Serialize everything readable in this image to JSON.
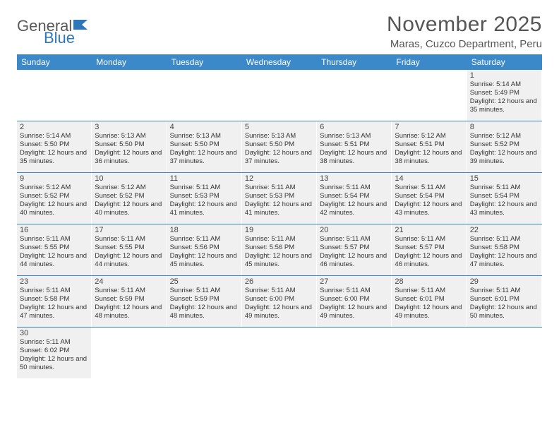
{
  "logo": {
    "text1": "General",
    "text2": "Blue"
  },
  "title": "November 2025",
  "subtitle": "Maras, Cuzco Department, Peru",
  "colors": {
    "header_bg": "#3b89c9",
    "header_text": "#ffffff",
    "cell_bg": "#f0f0f0",
    "divider": "#3b89c9",
    "logo_gray": "#5a5a5a",
    "logo_blue": "#2f77bb"
  },
  "weekdays": [
    "Sunday",
    "Monday",
    "Tuesday",
    "Wednesday",
    "Thursday",
    "Friday",
    "Saturday"
  ],
  "weeks": [
    [
      {
        "n": "",
        "sr": "",
        "ss": "",
        "dl": ""
      },
      {
        "n": "",
        "sr": "",
        "ss": "",
        "dl": ""
      },
      {
        "n": "",
        "sr": "",
        "ss": "",
        "dl": ""
      },
      {
        "n": "",
        "sr": "",
        "ss": "",
        "dl": ""
      },
      {
        "n": "",
        "sr": "",
        "ss": "",
        "dl": ""
      },
      {
        "n": "",
        "sr": "",
        "ss": "",
        "dl": ""
      },
      {
        "n": "1",
        "sr": "Sunrise: 5:14 AM",
        "ss": "Sunset: 5:49 PM",
        "dl": "Daylight: 12 hours and 35 minutes."
      }
    ],
    [
      {
        "n": "2",
        "sr": "Sunrise: 5:14 AM",
        "ss": "Sunset: 5:50 PM",
        "dl": "Daylight: 12 hours and 35 minutes."
      },
      {
        "n": "3",
        "sr": "Sunrise: 5:13 AM",
        "ss": "Sunset: 5:50 PM",
        "dl": "Daylight: 12 hours and 36 minutes."
      },
      {
        "n": "4",
        "sr": "Sunrise: 5:13 AM",
        "ss": "Sunset: 5:50 PM",
        "dl": "Daylight: 12 hours and 37 minutes."
      },
      {
        "n": "5",
        "sr": "Sunrise: 5:13 AM",
        "ss": "Sunset: 5:50 PM",
        "dl": "Daylight: 12 hours and 37 minutes."
      },
      {
        "n": "6",
        "sr": "Sunrise: 5:13 AM",
        "ss": "Sunset: 5:51 PM",
        "dl": "Daylight: 12 hours and 38 minutes."
      },
      {
        "n": "7",
        "sr": "Sunrise: 5:12 AM",
        "ss": "Sunset: 5:51 PM",
        "dl": "Daylight: 12 hours and 38 minutes."
      },
      {
        "n": "8",
        "sr": "Sunrise: 5:12 AM",
        "ss": "Sunset: 5:52 PM",
        "dl": "Daylight: 12 hours and 39 minutes."
      }
    ],
    [
      {
        "n": "9",
        "sr": "Sunrise: 5:12 AM",
        "ss": "Sunset: 5:52 PM",
        "dl": "Daylight: 12 hours and 40 minutes."
      },
      {
        "n": "10",
        "sr": "Sunrise: 5:12 AM",
        "ss": "Sunset: 5:52 PM",
        "dl": "Daylight: 12 hours and 40 minutes."
      },
      {
        "n": "11",
        "sr": "Sunrise: 5:11 AM",
        "ss": "Sunset: 5:53 PM",
        "dl": "Daylight: 12 hours and 41 minutes."
      },
      {
        "n": "12",
        "sr": "Sunrise: 5:11 AM",
        "ss": "Sunset: 5:53 PM",
        "dl": "Daylight: 12 hours and 41 minutes."
      },
      {
        "n": "13",
        "sr": "Sunrise: 5:11 AM",
        "ss": "Sunset: 5:54 PM",
        "dl": "Daylight: 12 hours and 42 minutes."
      },
      {
        "n": "14",
        "sr": "Sunrise: 5:11 AM",
        "ss": "Sunset: 5:54 PM",
        "dl": "Daylight: 12 hours and 43 minutes."
      },
      {
        "n": "15",
        "sr": "Sunrise: 5:11 AM",
        "ss": "Sunset: 5:54 PM",
        "dl": "Daylight: 12 hours and 43 minutes."
      }
    ],
    [
      {
        "n": "16",
        "sr": "Sunrise: 5:11 AM",
        "ss": "Sunset: 5:55 PM",
        "dl": "Daylight: 12 hours and 44 minutes."
      },
      {
        "n": "17",
        "sr": "Sunrise: 5:11 AM",
        "ss": "Sunset: 5:55 PM",
        "dl": "Daylight: 12 hours and 44 minutes."
      },
      {
        "n": "18",
        "sr": "Sunrise: 5:11 AM",
        "ss": "Sunset: 5:56 PM",
        "dl": "Daylight: 12 hours and 45 minutes."
      },
      {
        "n": "19",
        "sr": "Sunrise: 5:11 AM",
        "ss": "Sunset: 5:56 PM",
        "dl": "Daylight: 12 hours and 45 minutes."
      },
      {
        "n": "20",
        "sr": "Sunrise: 5:11 AM",
        "ss": "Sunset: 5:57 PM",
        "dl": "Daylight: 12 hours and 46 minutes."
      },
      {
        "n": "21",
        "sr": "Sunrise: 5:11 AM",
        "ss": "Sunset: 5:57 PM",
        "dl": "Daylight: 12 hours and 46 minutes."
      },
      {
        "n": "22",
        "sr": "Sunrise: 5:11 AM",
        "ss": "Sunset: 5:58 PM",
        "dl": "Daylight: 12 hours and 47 minutes."
      }
    ],
    [
      {
        "n": "23",
        "sr": "Sunrise: 5:11 AM",
        "ss": "Sunset: 5:58 PM",
        "dl": "Daylight: 12 hours and 47 minutes."
      },
      {
        "n": "24",
        "sr": "Sunrise: 5:11 AM",
        "ss": "Sunset: 5:59 PM",
        "dl": "Daylight: 12 hours and 48 minutes."
      },
      {
        "n": "25",
        "sr": "Sunrise: 5:11 AM",
        "ss": "Sunset: 5:59 PM",
        "dl": "Daylight: 12 hours and 48 minutes."
      },
      {
        "n": "26",
        "sr": "Sunrise: 5:11 AM",
        "ss": "Sunset: 6:00 PM",
        "dl": "Daylight: 12 hours and 49 minutes."
      },
      {
        "n": "27",
        "sr": "Sunrise: 5:11 AM",
        "ss": "Sunset: 6:00 PM",
        "dl": "Daylight: 12 hours and 49 minutes."
      },
      {
        "n": "28",
        "sr": "Sunrise: 5:11 AM",
        "ss": "Sunset: 6:01 PM",
        "dl": "Daylight: 12 hours and 49 minutes."
      },
      {
        "n": "29",
        "sr": "Sunrise: 5:11 AM",
        "ss": "Sunset: 6:01 PM",
        "dl": "Daylight: 12 hours and 50 minutes."
      }
    ],
    [
      {
        "n": "30",
        "sr": "Sunrise: 5:11 AM",
        "ss": "Sunset: 6:02 PM",
        "dl": "Daylight: 12 hours and 50 minutes."
      },
      {
        "n": "",
        "sr": "",
        "ss": "",
        "dl": ""
      },
      {
        "n": "",
        "sr": "",
        "ss": "",
        "dl": ""
      },
      {
        "n": "",
        "sr": "",
        "ss": "",
        "dl": ""
      },
      {
        "n": "",
        "sr": "",
        "ss": "",
        "dl": ""
      },
      {
        "n": "",
        "sr": "",
        "ss": "",
        "dl": ""
      },
      {
        "n": "",
        "sr": "",
        "ss": "",
        "dl": ""
      }
    ]
  ]
}
